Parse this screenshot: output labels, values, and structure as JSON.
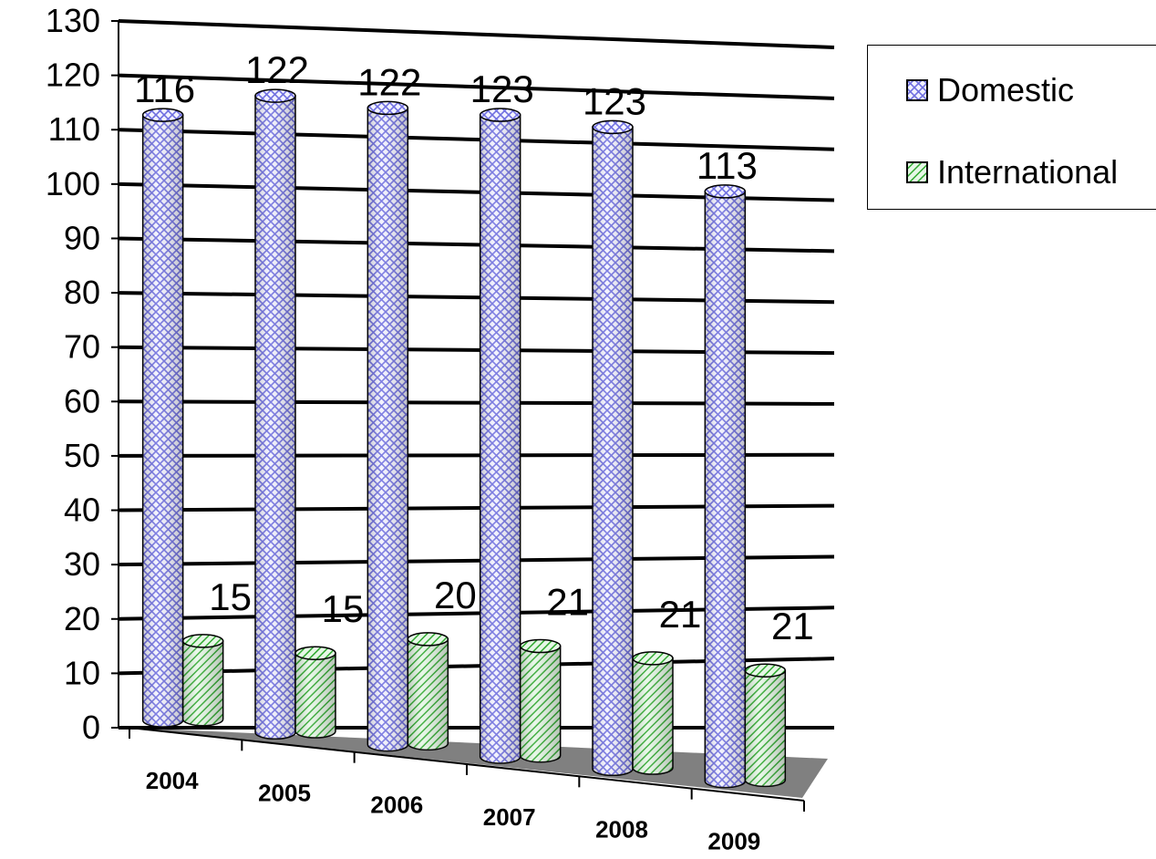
{
  "chart_data": {
    "type": "bar",
    "style": "3d-cylinder",
    "title": "",
    "xlabel": "",
    "ylabel": "",
    "ylim": [
      0,
      130
    ],
    "yticks": [
      "0",
      "10",
      "20",
      "30",
      "40",
      "50",
      "60",
      "70",
      "80",
      "90",
      "100",
      "110",
      "120",
      "130"
    ],
    "grid": true,
    "legend_position": "top-right",
    "categories": [
      "2004",
      "2005",
      "2006",
      "2007",
      "2008",
      "2009"
    ],
    "series": [
      {
        "name": "Domestic",
        "values": [
          116,
          122,
          122,
          123,
          123,
          113
        ],
        "labels": [
          "116",
          "122",
          "122",
          "123",
          "123",
          "113"
        ],
        "color": "#8888ee",
        "pattern": "crosshatch"
      },
      {
        "name": "International",
        "values": [
          15,
          15,
          20,
          21,
          21,
          21
        ],
        "labels": [
          "15",
          "15",
          "20",
          "21",
          "21",
          "21"
        ],
        "color": "#33bb33",
        "pattern": "diagonal-stripes"
      }
    ]
  }
}
